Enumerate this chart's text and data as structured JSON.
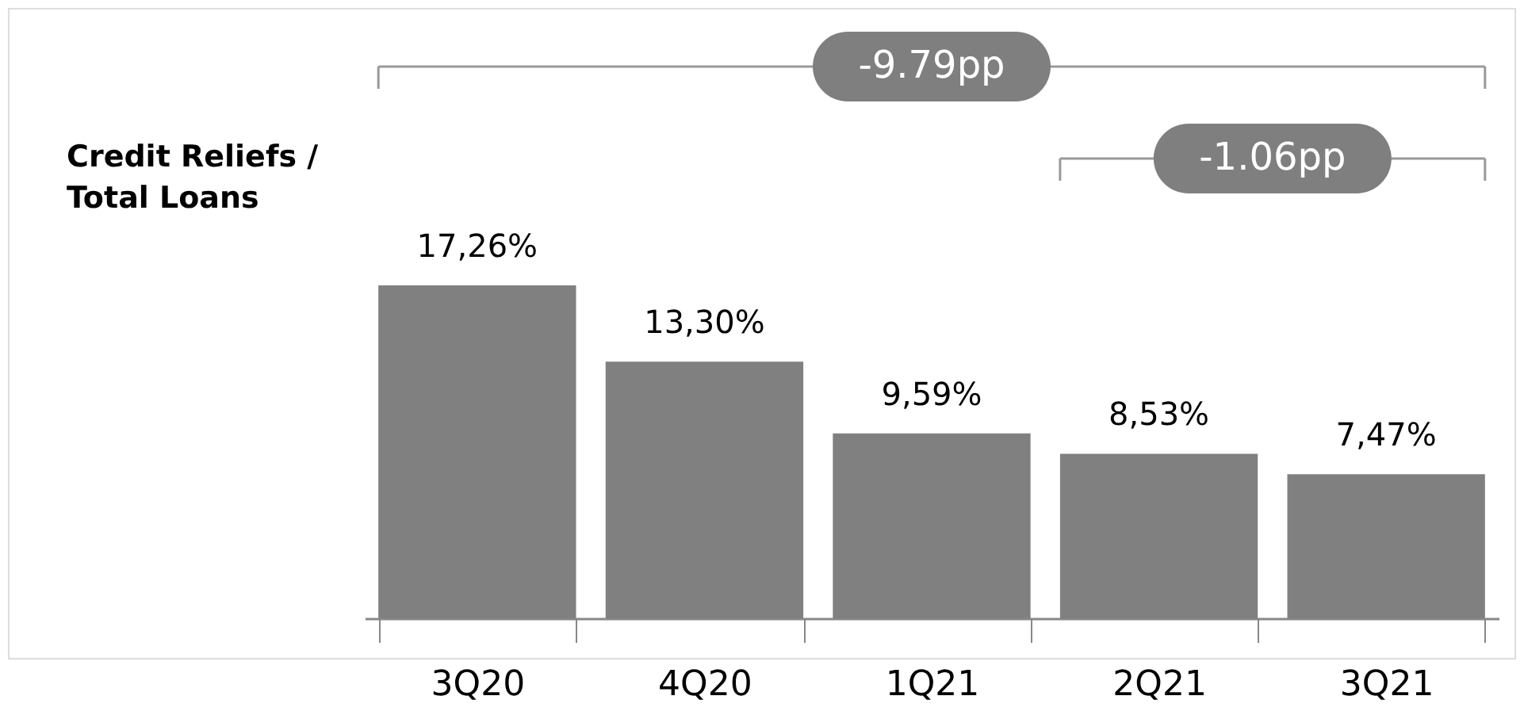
{
  "chart_data": {
    "type": "bar",
    "ylabel": "Credit Reliefs / Total Loans",
    "categories": [
      "3Q20",
      "4Q20",
      "1Q21",
      "2Q21",
      "3Q21"
    ],
    "values": [
      17.26,
      13.3,
      9.59,
      8.53,
      7.47
    ],
    "value_labels": [
      "17,26%",
      "13,30%",
      "9,59%",
      "8,53%",
      "7,47%"
    ],
    "color": "#808080",
    "grid": false,
    "annotations": [
      "-9.79pp",
      "-1.06pp"
    ]
  }
}
